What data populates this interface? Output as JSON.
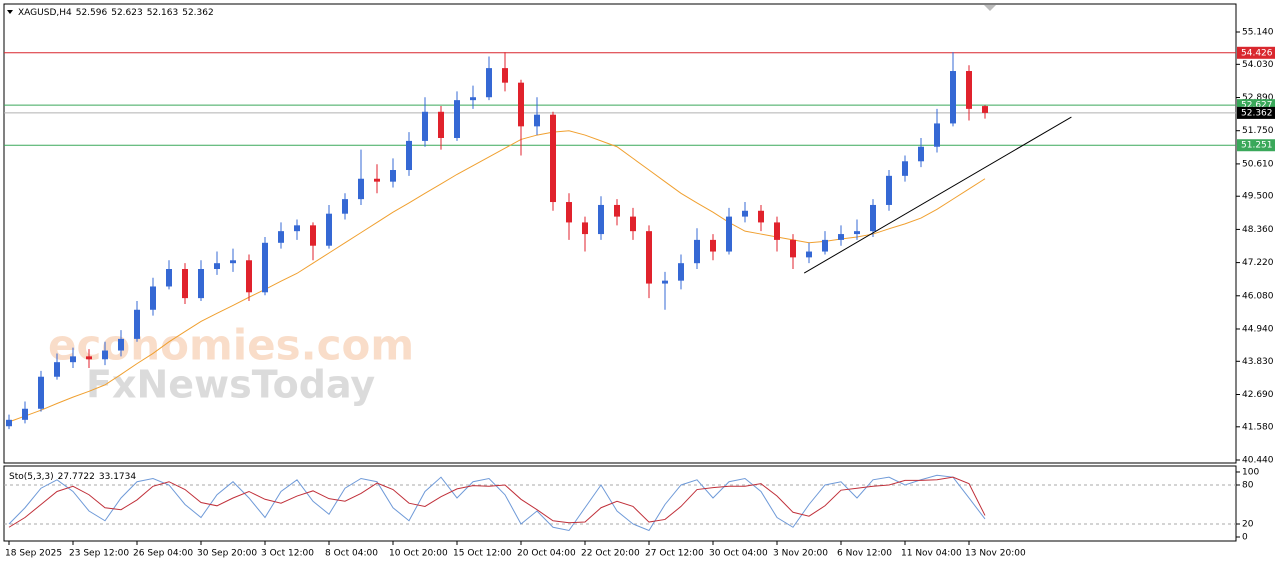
{
  "chart_data": [
    {
      "type": "candlestick",
      "title": "XAGUSD,H4",
      "categories": [
        "18 Sep 2025",
        null,
        null,
        null,
        "23 Sep 12:00",
        null,
        null,
        null,
        "26 Sep 04:00",
        null,
        null,
        null,
        "30 Sep 20:00",
        null,
        null,
        null,
        "3 Oct 12:00",
        null,
        null,
        null,
        "8 Oct 04:00",
        null,
        null,
        null,
        "10 Oct 20:00",
        null,
        null,
        null,
        "15 Oct 12:00",
        null,
        null,
        null,
        "20 Oct 04:00",
        null,
        null,
        null,
        "22 Oct 20:00",
        null,
        null,
        null,
        "27 Oct 12:00",
        null,
        null,
        null,
        "30 Oct 04:00",
        null,
        null,
        null,
        "3 Nov 20:00",
        null,
        null,
        null,
        "6 Nov 12:00",
        null,
        null,
        null,
        "11 Nov 04:00",
        null,
        null,
        null,
        "13 Nov 20:00",
        null
      ],
      "open": [
        41.6,
        41.82,
        42.2,
        43.3,
        43.8,
        44.0,
        43.9,
        44.2,
        44.6,
        45.6,
        46.4,
        47.0,
        46.0,
        47.0,
        47.2,
        47.3,
        46.2,
        47.9,
        48.3,
        48.5,
        47.8,
        48.9,
        49.4,
        50.1,
        50.0,
        50.4,
        51.4,
        52.4,
        51.5,
        52.8,
        52.9,
        53.9,
        53.4,
        51.9,
        52.3,
        49.3,
        48.6,
        48.2,
        49.2,
        48.8,
        48.3,
        46.5,
        46.6,
        47.2,
        48.0,
        47.6,
        48.8,
        49.0,
        48.6,
        48.0,
        47.4,
        47.6,
        48.0,
        48.2,
        48.3,
        49.2,
        50.2,
        50.7,
        51.2,
        52.0,
        53.8,
        52.596
      ],
      "high": [
        42.0,
        42.45,
        43.5,
        44.1,
        44.3,
        44.25,
        44.5,
        44.9,
        45.9,
        46.7,
        47.3,
        47.2,
        47.3,
        47.6,
        47.7,
        47.5,
        48.1,
        48.6,
        48.7,
        48.6,
        49.2,
        49.6,
        51.1,
        50.6,
        50.8,
        51.7,
        52.9,
        52.6,
        53.1,
        53.3,
        54.3,
        54.45,
        53.5,
        52.9,
        52.4,
        49.6,
        48.8,
        49.5,
        49.4,
        49.1,
        48.5,
        46.9,
        47.5,
        48.4,
        48.2,
        49.1,
        49.3,
        49.2,
        48.8,
        48.2,
        47.9,
        48.3,
        48.5,
        48.7,
        49.4,
        50.4,
        50.9,
        51.5,
        52.5,
        54.45,
        54.0,
        52.623
      ],
      "low": [
        41.5,
        41.7,
        42.1,
        43.2,
        43.6,
        43.6,
        43.7,
        44.0,
        44.5,
        45.4,
        46.3,
        45.8,
        45.9,
        46.8,
        46.9,
        45.9,
        46.1,
        47.7,
        48.0,
        47.3,
        47.7,
        48.7,
        49.2,
        49.6,
        49.8,
        50.2,
        51.2,
        51.1,
        51.4,
        52.5,
        52.8,
        53.1,
        50.9,
        51.6,
        49.0,
        48.0,
        47.6,
        48.0,
        48.5,
        48.0,
        46.0,
        45.6,
        46.3,
        47.0,
        47.3,
        47.5,
        48.6,
        48.3,
        47.6,
        47.0,
        47.2,
        47.5,
        47.8,
        48.0,
        48.1,
        49.0,
        50.0,
        50.5,
        51.0,
        51.9,
        52.1,
        52.163
      ],
      "close": [
        41.82,
        42.2,
        43.3,
        43.8,
        44.0,
        43.9,
        44.2,
        44.6,
        45.6,
        46.4,
        47.0,
        46.0,
        47.0,
        47.2,
        47.3,
        46.2,
        47.9,
        48.3,
        48.5,
        47.8,
        48.9,
        49.4,
        50.1,
        50.0,
        50.4,
        51.4,
        52.4,
        51.5,
        52.8,
        52.9,
        53.9,
        53.4,
        51.9,
        52.3,
        49.3,
        48.6,
        48.2,
        49.2,
        48.8,
        48.3,
        46.5,
        46.6,
        47.2,
        48.0,
        47.6,
        48.8,
        49.0,
        48.6,
        48.0,
        47.4,
        47.6,
        48.0,
        48.2,
        48.3,
        49.2,
        50.2,
        50.7,
        51.2,
        52.0,
        53.8,
        52.5,
        52.362
      ],
      "up_color": "#3568d4",
      "down_color": "#e0222c",
      "ma": {
        "color": "#f0a030",
        "values": [
          41.75,
          41.95,
          42.15,
          42.38,
          42.6,
          42.8,
          43.02,
          43.38,
          43.75,
          44.1,
          44.5,
          44.85,
          45.2,
          45.48,
          45.75,
          46.03,
          46.3,
          46.58,
          46.85,
          47.2,
          47.55,
          47.9,
          48.25,
          48.6,
          48.95,
          49.27,
          49.6,
          49.92,
          50.25,
          50.55,
          50.85,
          51.15,
          51.45,
          51.6,
          51.7,
          51.75,
          51.6,
          51.4,
          51.2,
          50.8,
          50.4,
          50.0,
          49.6,
          49.27,
          48.95,
          48.6,
          48.3,
          48.2,
          48.1,
          48.0,
          47.9,
          47.95,
          48.03,
          48.1,
          48.2,
          48.38,
          48.55,
          48.75,
          49.05,
          49.4,
          49.75,
          50.1
        ]
      },
      "levels": [
        {
          "value": 54.426,
          "color": "#d9272e"
        },
        {
          "value": 52.627,
          "color": "#3aa85a"
        },
        {
          "value": 51.251,
          "color": "#3aa85a"
        }
      ],
      "current_price_color": "#000000",
      "trendline": {
        "color": "#000000",
        "from": [
          49.7,
          46.86
        ],
        "to": [
          66.4,
          52.22
        ]
      },
      "watermark": [
        "economies.com",
        "FxNewsToday"
      ],
      "ylim": [
        40.337,
        56.102
      ],
      "yticks": [
        {
          "value": 55.14,
          "label": "55.140"
        },
        {
          "value": 54.03,
          "label": "54.030"
        },
        {
          "value": 52.89,
          "label": "52.890"
        },
        {
          "value": 51.75,
          "label": "51.750"
        },
        {
          "value": 50.61,
          "label": "50.610"
        },
        {
          "value": 49.5,
          "label": "49.500"
        },
        {
          "value": 48.36,
          "label": "48.360"
        },
        {
          "value": 47.22,
          "label": "47.220"
        },
        {
          "value": 46.08,
          "label": "46.080"
        },
        {
          "value": 44.94,
          "label": "44.940"
        },
        {
          "value": 43.83,
          "label": "43.830"
        },
        {
          "value": 42.69,
          "label": "42.690"
        },
        {
          "value": 41.58,
          "label": "41.580"
        },
        {
          "value": 40.44,
          "label": "40.440"
        }
      ]
    },
    {
      "type": "line",
      "title": "Sto(5,3,3)",
      "series": [
        {
          "color": "#6f9ad8",
          "values": [
            20,
            45,
            75,
            88,
            70,
            40,
            25,
            60,
            85,
            90,
            80,
            50,
            30,
            65,
            85,
            60,
            30,
            70,
            88,
            55,
            35,
            75,
            90,
            85,
            45,
            25,
            70,
            92,
            60,
            85,
            90,
            65,
            20,
            40,
            15,
            10,
            45,
            80,
            40,
            20,
            10,
            50,
            80,
            88,
            60,
            85,
            90,
            70,
            30,
            15,
            50,
            80,
            85,
            60,
            88,
            92,
            80,
            88,
            95,
            92,
            60,
            27.7722
          ]
        },
        {
          "color": "#c0303a",
          "values": [
            15,
            30,
            50,
            70,
            78,
            65,
            45,
            42,
            57,
            78,
            85,
            73,
            53,
            48,
            60,
            70,
            58,
            52,
            63,
            71,
            59,
            55,
            67,
            83,
            73,
            52,
            47,
            62,
            74,
            79,
            78,
            80,
            58,
            42,
            25,
            22,
            23,
            45,
            55,
            47,
            23,
            27,
            47,
            73,
            76,
            78,
            78,
            82,
            63,
            38,
            32,
            48,
            72,
            75,
            78,
            80,
            87,
            87,
            88,
            92,
            82,
            33.1734
          ]
        }
      ],
      "levels": [
        80,
        20
      ],
      "ylim": [
        -6.15,
        109.2
      ],
      "yticks": [
        100,
        80,
        20,
        0
      ]
    }
  ]
}
